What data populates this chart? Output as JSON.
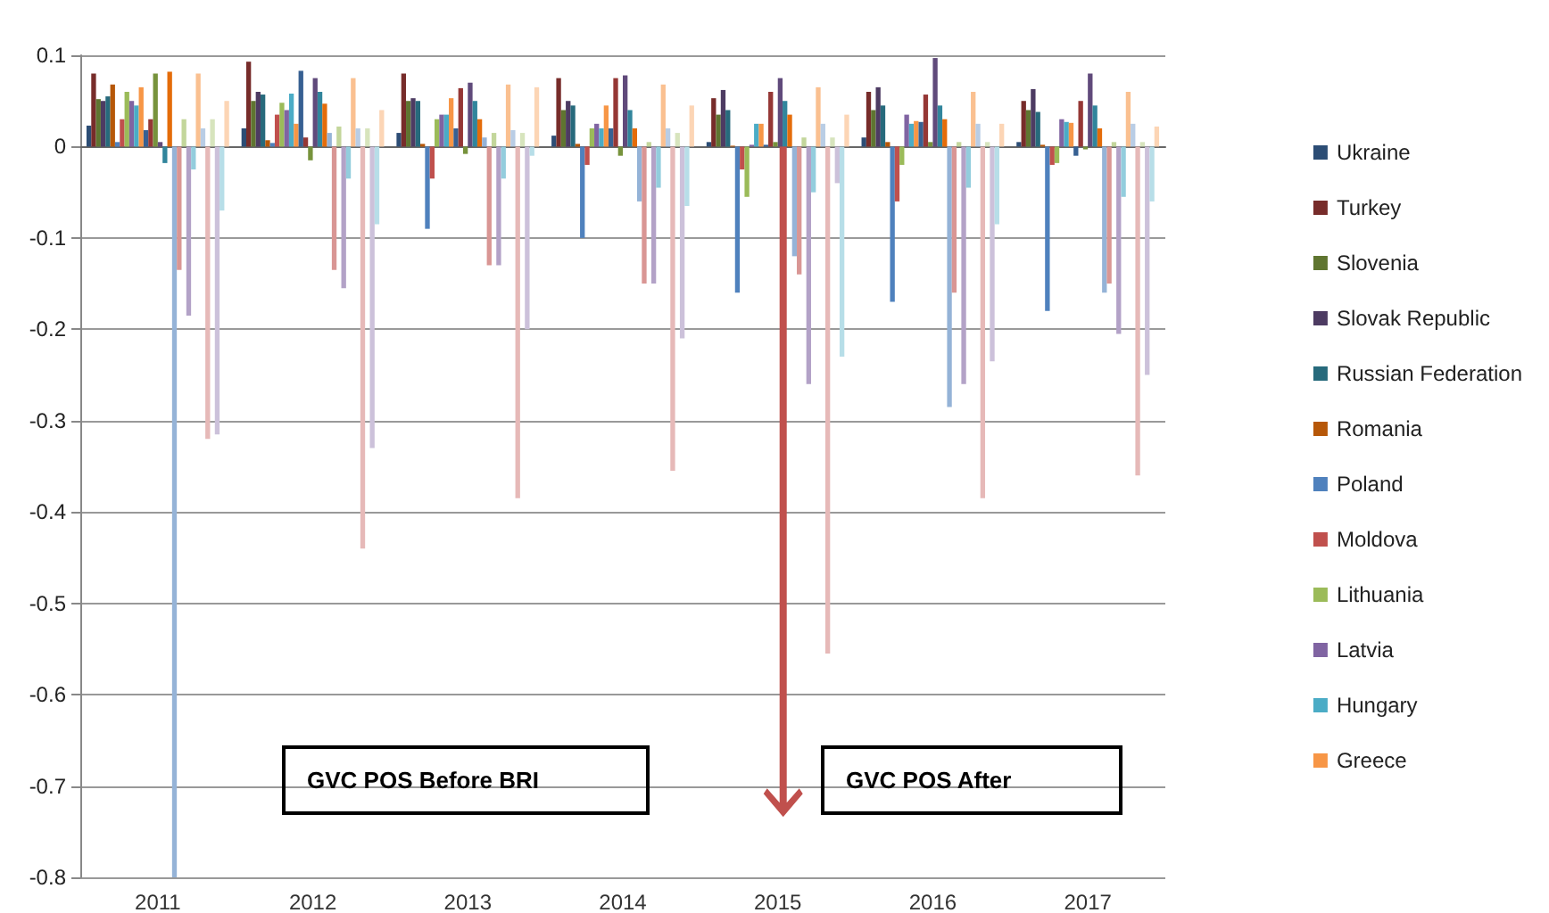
{
  "chart_data": {
    "type": "bar",
    "categories": [
      "2011",
      "2012",
      "2013",
      "2014",
      "2015",
      "2016",
      "2017"
    ],
    "ylim": [
      -0.8,
      0.1
    ],
    "yticks": [
      -0.8,
      -0.7,
      -0.6,
      -0.5,
      -0.4,
      -0.3,
      -0.2,
      -0.1,
      0,
      0.1
    ],
    "grid": "y",
    "legend": "right",
    "annotations": [
      "GVC POS Before BRI",
      "GVC POS After"
    ],
    "series": [
      {
        "name": "Ukraine",
        "color": "#2c4d75",
        "values": [
          0.023,
          0.02,
          0.015,
          0.012,
          0.005,
          0.01,
          0.005
        ]
      },
      {
        "name": "Turkey",
        "color": "#772c2a",
        "values": [
          0.08,
          0.093,
          0.08,
          0.075,
          0.053,
          0.06,
          0.05
        ]
      },
      {
        "name": "Slovenia",
        "color": "#5f7530",
        "values": [
          0.052,
          0.05,
          0.05,
          0.04,
          0.035,
          0.04,
          0.04
        ]
      },
      {
        "name": "Slovak Republic",
        "color": "#4d3b62",
        "values": [
          0.05,
          0.06,
          0.053,
          0.05,
          0.062,
          0.065,
          0.063
        ]
      },
      {
        "name": "Russian Federation",
        "color": "#276a7c",
        "values": [
          0.055,
          0.057,
          0.05,
          0.045,
          0.04,
          0.045,
          0.038
        ]
      },
      {
        "name": "Romania",
        "color": "#b65708",
        "values": [
          0.068,
          0.007,
          0.003,
          0.003,
          0.001,
          0.005,
          0.002
        ]
      },
      {
        "name": "Poland",
        "color": "#4f81bd",
        "values": [
          0.005,
          0.004,
          -0.09,
          -0.1,
          -0.16,
          -0.17,
          -0.18
        ]
      },
      {
        "name": "Moldova",
        "color": "#c0504d",
        "values": [
          0.03,
          0.035,
          -0.035,
          -0.02,
          -0.025,
          -0.06,
          -0.02
        ]
      },
      {
        "name": "Lithuania",
        "color": "#9bbb59",
        "values": [
          0.06,
          0.048,
          0.03,
          0.02,
          -0.055,
          -0.02,
          -0.018
        ]
      },
      {
        "name": "Latvia",
        "color": "#8064a2",
        "values": [
          0.05,
          0.04,
          0.035,
          0.025,
          0.002,
          0.035,
          0.03
        ]
      },
      {
        "name": "Hungary",
        "color": "#4bacc6",
        "values": [
          0.045,
          0.058,
          0.035,
          0.02,
          0.025,
          0.025,
          0.027
        ]
      },
      {
        "name": "Greece",
        "color": "#f79646",
        "values": [
          0.065,
          0.025,
          0.053,
          0.045,
          0.025,
          0.028,
          0.026
        ]
      },
      {
        "color": "#376092",
        "values": [
          0.018,
          0.083,
          0.02,
          0.02,
          0.002,
          0.027,
          -0.01
        ]
      },
      {
        "color": "#953735",
        "values": [
          0.03,
          0.01,
          0.064,
          0.075,
          0.06,
          0.057,
          0.05
        ]
      },
      {
        "color": "#77933c",
        "values": [
          0.08,
          -0.015,
          -0.008,
          -0.01,
          0.005,
          0.005,
          -0.003
        ]
      },
      {
        "color": "#604a7b",
        "values": [
          0.005,
          0.075,
          0.07,
          0.078,
          0.075,
          0.097,
          0.08
        ]
      },
      {
        "color": "#31859c",
        "values": [
          -0.018,
          0.06,
          0.05,
          0.04,
          0.05,
          0.045,
          0.045
        ]
      },
      {
        "color": "#e46c0a",
        "values": [
          0.082,
          0.047,
          0.03,
          0.02,
          0.035,
          0.03,
          0.02
        ]
      },
      {
        "color": "#95b3d7",
        "values": [
          -0.8,
          0.015,
          0.01,
          -0.06,
          -0.12,
          -0.285,
          -0.16
        ]
      },
      {
        "color": "#d99694",
        "values": [
          -0.135,
          -0.135,
          -0.13,
          -0.15,
          -0.14,
          -0.16,
          -0.15
        ]
      },
      {
        "color": "#c3d69b",
        "values": [
          0.03,
          0.022,
          0.015,
          0.005,
          0.01,
          0.005,
          0.005
        ]
      },
      {
        "color": "#b3a2c7",
        "values": [
          -0.185,
          -0.155,
          -0.13,
          -0.15,
          -0.26,
          -0.26,
          -0.205
        ]
      },
      {
        "color": "#93cddd",
        "values": [
          -0.025,
          -0.035,
          -0.035,
          -0.045,
          -0.05,
          -0.045,
          -0.055
        ]
      },
      {
        "color": "#fac090",
        "values": [
          0.08,
          0.075,
          0.068,
          0.068,
          0.065,
          0.06,
          0.06
        ]
      },
      {
        "color": "#b9cde5",
        "values": [
          0.02,
          0.02,
          0.018,
          0.02,
          0.025,
          0.025,
          0.025
        ]
      },
      {
        "color": "#e6b9b8",
        "values": [
          -0.32,
          -0.44,
          -0.385,
          -0.355,
          -0.555,
          -0.385,
          -0.36
        ]
      },
      {
        "color": "#d7e4bd",
        "values": [
          0.03,
          0.02,
          0.015,
          0.015,
          0.01,
          0.005,
          0.005
        ]
      },
      {
        "color": "#ccc1da",
        "values": [
          -0.315,
          -0.33,
          -0.2,
          -0.21,
          -0.04,
          -0.235,
          -0.25
        ]
      },
      {
        "color": "#b7dee8",
        "values": [
          -0.07,
          -0.085,
          -0.01,
          -0.065,
          -0.23,
          -0.085,
          -0.06
        ]
      },
      {
        "color": "#fcd5b5",
        "values": [
          0.05,
          0.04,
          0.065,
          0.045,
          0.035,
          0.025,
          0.022
        ]
      }
    ]
  }
}
